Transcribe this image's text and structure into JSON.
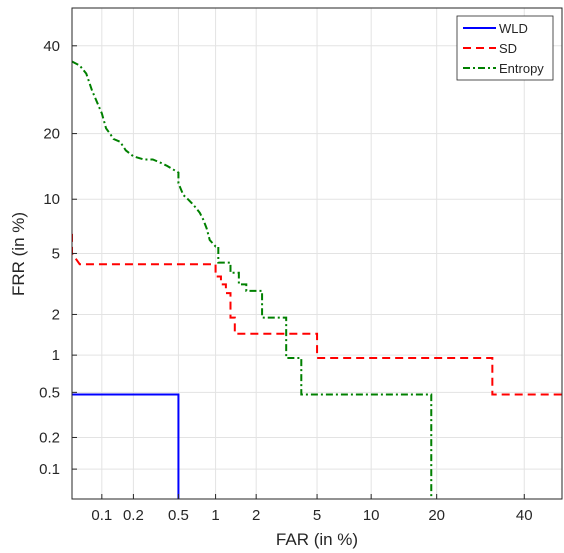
{
  "chart_data": {
    "type": "line",
    "title": "",
    "xlabel": "FAR (in %)",
    "ylabel": "FRR (in %)",
    "x_scale": "probit",
    "y_scale": "probit",
    "xlim": [
      0.05,
      50
    ],
    "ylim": [
      0.05,
      50
    ],
    "x_ticks": [
      0.1,
      0.2,
      0.5,
      1,
      2,
      5,
      10,
      20,
      40
    ],
    "x_tick_labels": [
      "0.1",
      "0.2",
      "0.5",
      "1",
      "2",
      "5",
      "10",
      "20",
      "40"
    ],
    "y_ticks": [
      0.1,
      0.2,
      0.5,
      1,
      2,
      5,
      10,
      20,
      40
    ],
    "y_tick_labels": [
      "0.1",
      "0.2",
      "0.5",
      "1",
      "2",
      "5",
      "10",
      "20",
      "40"
    ],
    "grid": true,
    "legend_position": "top-right",
    "series": [
      {
        "name": "WLD",
        "color": "#0000ff",
        "dash": "solid",
        "points": [
          [
            0.05,
            0.48
          ],
          [
            0.5,
            0.48
          ],
          [
            0.5,
            0.05
          ]
        ]
      },
      {
        "name": "SD",
        "color": "#ff0000",
        "dash": "dashed",
        "points": [
          [
            0.05,
            6.5
          ],
          [
            0.05,
            5.0
          ],
          [
            0.06,
            4.3
          ],
          [
            1.0,
            4.3
          ],
          [
            1.0,
            3.6
          ],
          [
            1.1,
            3.6
          ],
          [
            1.1,
            3.2
          ],
          [
            1.2,
            3.2
          ],
          [
            1.2,
            2.8
          ],
          [
            1.3,
            2.8
          ],
          [
            1.3,
            1.9
          ],
          [
            1.4,
            1.9
          ],
          [
            1.4,
            1.45
          ],
          [
            5.0,
            1.45
          ],
          [
            5.0,
            0.95
          ],
          [
            32,
            0.95
          ],
          [
            32,
            0.48
          ],
          [
            50,
            0.48
          ]
        ]
      },
      {
        "name": "Entropy",
        "color": "#008000",
        "dash": "dashdot",
        "points": [
          [
            0.05,
            36
          ],
          [
            0.06,
            35
          ],
          [
            0.07,
            33
          ],
          [
            0.08,
            29
          ],
          [
            0.1,
            24
          ],
          [
            0.11,
            21
          ],
          [
            0.12,
            20
          ],
          [
            0.13,
            19
          ],
          [
            0.15,
            18.5
          ],
          [
            0.17,
            17
          ],
          [
            0.2,
            16
          ],
          [
            0.25,
            15.5
          ],
          [
            0.3,
            15.5
          ],
          [
            0.35,
            15
          ],
          [
            0.4,
            14.5
          ],
          [
            0.5,
            13.5
          ],
          [
            0.5,
            12
          ],
          [
            0.55,
            10.5
          ],
          [
            0.6,
            10
          ],
          [
            0.65,
            9.5
          ],
          [
            0.7,
            9
          ],
          [
            0.75,
            8.5
          ],
          [
            0.8,
            7.8
          ],
          [
            0.85,
            7
          ],
          [
            0.9,
            6
          ],
          [
            1.0,
            5.5
          ],
          [
            1.05,
            5.5
          ],
          [
            1.05,
            4.4
          ],
          [
            1.3,
            4.4
          ],
          [
            1.3,
            3.8
          ],
          [
            1.5,
            3.8
          ],
          [
            1.5,
            3.2
          ],
          [
            1.7,
            3.2
          ],
          [
            1.7,
            2.9
          ],
          [
            2.2,
            2.9
          ],
          [
            2.2,
            1.9
          ],
          [
            3.2,
            1.9
          ],
          [
            3.2,
            0.95
          ],
          [
            4.0,
            0.95
          ],
          [
            4.0,
            0.48
          ],
          [
            19,
            0.48
          ],
          [
            19,
            0.05
          ]
        ]
      }
    ]
  }
}
